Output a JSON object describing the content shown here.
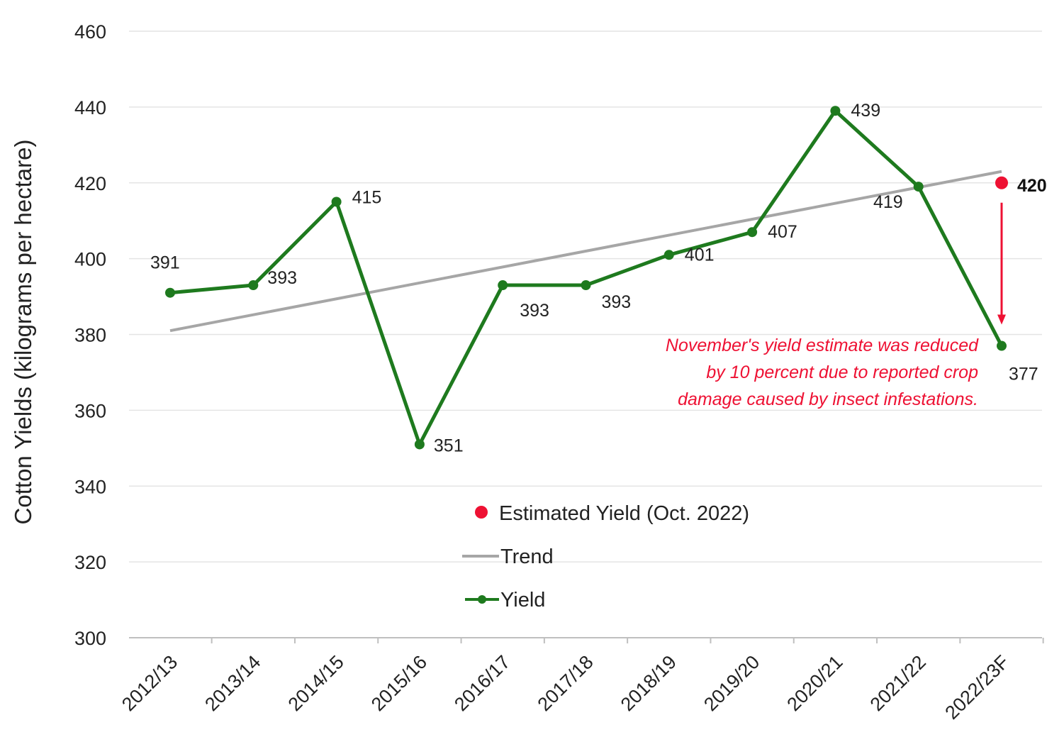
{
  "chart_data": {
    "type": "line",
    "title": "",
    "xlabel": "",
    "ylabel": "Cotton Yields (kilograms per hectare)",
    "ylim": [
      300,
      460
    ],
    "yticks": [
      300,
      320,
      340,
      360,
      380,
      400,
      420,
      440,
      460
    ],
    "grid": true,
    "categories": [
      "2012/13",
      "2013/14",
      "2014/15",
      "2015/16",
      "2016/17",
      "2017/18",
      "2018/19",
      "2019/20",
      "2020/21",
      "2021/22",
      "2022/23F"
    ],
    "series": [
      {
        "name": "Yield",
        "color": "#1e7a1e",
        "values": [
          391,
          393,
          415,
          351,
          393,
          393,
          401,
          407,
          439,
          419,
          377
        ]
      },
      {
        "name": "Trend",
        "color": "#a6a6a6",
        "start": 381,
        "end": 423
      }
    ],
    "estimate": {
      "name": "Estimated Yield (Oct. 2022)",
      "category": "2022/23F",
      "value": 420,
      "color": "#ee1133"
    },
    "annotation": {
      "lines": [
        "November's yield estimate was reduced",
        "by 10 percent due to reported crop",
        "damage caused by insect infestations."
      ],
      "color": "#ee1133"
    },
    "legend": [
      "Estimated Yield (Oct. 2022)",
      "Trend",
      "Yield"
    ],
    "legend_position": "bottom-center"
  }
}
